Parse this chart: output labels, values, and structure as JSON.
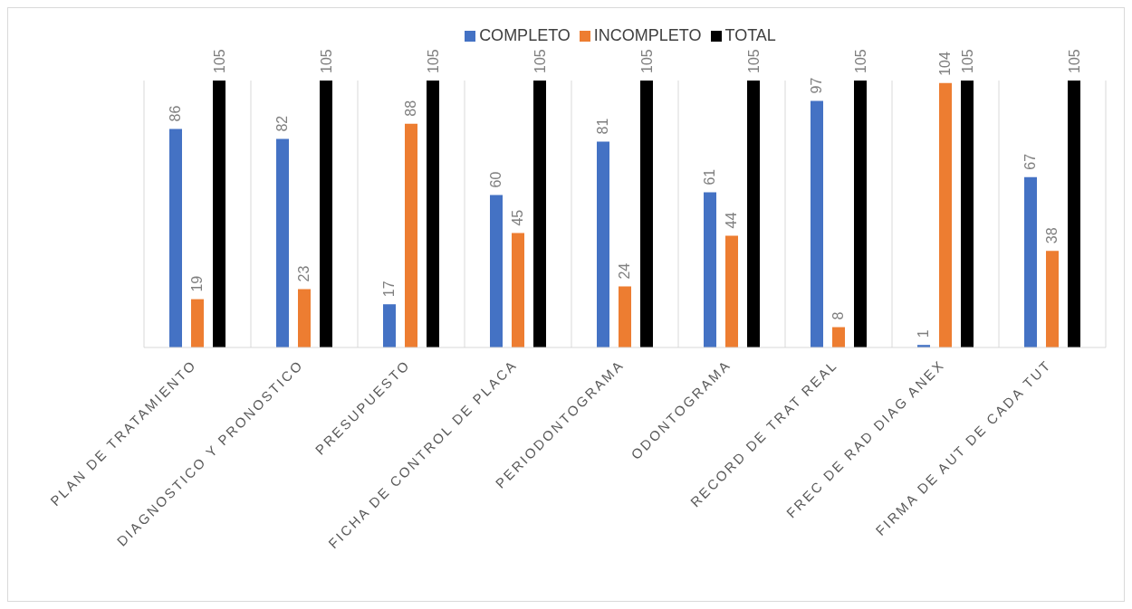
{
  "chart_data": {
    "type": "bar",
    "categories": [
      "PLAN DE TRATAMIENTO",
      "DIAGNOSTICO Y PRONOSTICO",
      "PRESUPUESTO",
      "FICHA DE CONTROL DE PLACA",
      "PERIODONTOGRAMA",
      "ODONTOGRAMA",
      "RECORD DE TRAT REAL",
      "FREC DE RAD DIAG ANEX",
      "FIRMA DE AUT DE CADA TUT"
    ],
    "series": [
      {
        "name": "COMPLETO",
        "color": "#4472c4",
        "values": [
          86,
          82,
          17,
          60,
          81,
          61,
          97,
          1,
          67
        ]
      },
      {
        "name": "INCOMPLETO",
        "color": "#ed7d31",
        "values": [
          19,
          23,
          88,
          45,
          24,
          44,
          8,
          104,
          38
        ]
      },
      {
        "name": "TOTAL",
        "color": "#000000",
        "values": [
          105,
          105,
          105,
          105,
          105,
          105,
          105,
          105,
          105
        ]
      }
    ],
    "data_labels": true,
    "grid": "x",
    "legend": "top"
  }
}
